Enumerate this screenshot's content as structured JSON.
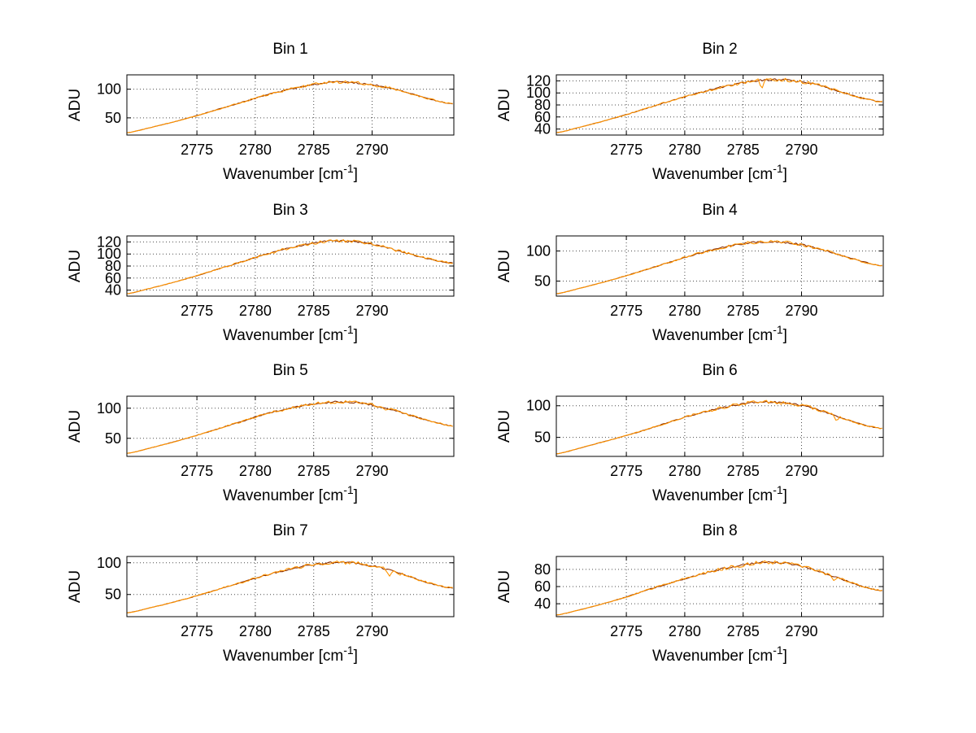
{
  "figure": {
    "background": "#ffffff"
  },
  "axis_labels": {
    "y": "ADU",
    "x_prefix": "Wavenumber [cm",
    "x_sup": "-1",
    "x_suffix": "]"
  },
  "series_style": [
    {
      "name": "trace-secondary",
      "color": "#8b2e00",
      "noise": 0.55,
      "seed": 7,
      "use_spikes": false
    },
    {
      "name": "trace-main",
      "color": "#ff9400",
      "noise": 1.0,
      "seed": 1,
      "use_spikes": true
    }
  ],
  "chart_data": [
    {
      "type": "line",
      "title": "Bin 1",
      "ylabel": "ADU",
      "xlim": [
        2769,
        2797
      ],
      "ylim": [
        20,
        125
      ],
      "xticks": [
        2775,
        2780,
        2785,
        2790
      ],
      "yticks": [
        50,
        100
      ],
      "noise": 2.4,
      "spikes": [],
      "x": [
        2769,
        2771,
        2773,
        2775,
        2777,
        2779,
        2781,
        2783,
        2785,
        2786.5,
        2788,
        2789.5,
        2791,
        2792.5,
        2794,
        2795.5,
        2797
      ],
      "y": [
        24,
        33,
        43,
        54,
        66,
        78,
        90,
        100,
        108,
        112,
        112,
        109,
        104,
        97,
        88,
        80,
        74
      ]
    },
    {
      "type": "line",
      "title": "Bin 2",
      "ylabel": "ADU",
      "xlim": [
        2769,
        2797
      ],
      "ylim": [
        30,
        130
      ],
      "xticks": [
        2775,
        2780,
        2785,
        2790
      ],
      "yticks": [
        40,
        60,
        80,
        100,
        120
      ],
      "noise": 2.6,
      "spikes": [
        {
          "x": 2786.6,
          "dy": -13
        }
      ],
      "x": [
        2769,
        2771,
        2773,
        2775,
        2777,
        2779,
        2781,
        2783,
        2785,
        2786.5,
        2788,
        2789.5,
        2791,
        2792.5,
        2794,
        2795.5,
        2797
      ],
      "y": [
        34,
        43,
        53,
        64,
        76,
        88,
        99,
        109,
        117,
        121,
        122,
        120,
        115,
        107,
        98,
        90,
        85
      ]
    },
    {
      "type": "line",
      "title": "Bin 3",
      "ylabel": "ADU",
      "xlim": [
        2769,
        2797
      ],
      "ylim": [
        30,
        130
      ],
      "xticks": [
        2775,
        2780,
        2785,
        2790
      ],
      "yticks": [
        40,
        60,
        80,
        100,
        120
      ],
      "noise": 2.6,
      "spikes": [],
      "x": [
        2769,
        2771,
        2773,
        2775,
        2777,
        2779,
        2781,
        2783,
        2785,
        2786.5,
        2788,
        2789.5,
        2791,
        2792.5,
        2794,
        2795.5,
        2797
      ],
      "y": [
        34,
        43,
        53,
        64,
        76,
        88,
        100,
        110,
        118,
        122,
        121,
        118,
        112,
        104,
        96,
        89,
        85
      ]
    },
    {
      "type": "line",
      "title": "Bin 4",
      "ylabel": "ADU",
      "xlim": [
        2769,
        2797
      ],
      "ylim": [
        25,
        125
      ],
      "xticks": [
        2775,
        2780,
        2785,
        2790
      ],
      "yticks": [
        50,
        100
      ],
      "noise": 2.4,
      "spikes": [],
      "x": [
        2769,
        2771,
        2773,
        2775,
        2777,
        2779,
        2781,
        2783,
        2785,
        2786.5,
        2788,
        2789.5,
        2791,
        2792.5,
        2794,
        2795.5,
        2797
      ],
      "y": [
        29,
        38,
        48,
        59,
        71,
        83,
        95,
        105,
        112,
        115,
        115,
        112,
        106,
        98,
        89,
        81,
        75
      ]
    },
    {
      "type": "line",
      "title": "Bin 5",
      "ylabel": "ADU",
      "xlim": [
        2769,
        2797
      ],
      "ylim": [
        20,
        120
      ],
      "xticks": [
        2775,
        2780,
        2785,
        2790
      ],
      "yticks": [
        50,
        100
      ],
      "noise": 2.4,
      "spikes": [
        {
          "x": 2791.1,
          "dy": -5
        }
      ],
      "x": [
        2769,
        2771,
        2773,
        2775,
        2777,
        2779,
        2781,
        2783,
        2785,
        2786.5,
        2788,
        2789.5,
        2791,
        2792.5,
        2794,
        2795.5,
        2797
      ],
      "y": [
        25,
        34,
        44,
        55,
        67,
        79,
        91,
        100,
        107,
        110,
        110,
        107,
        101,
        93,
        84,
        76,
        70
      ]
    },
    {
      "type": "line",
      "title": "Bin 6",
      "ylabel": "ADU",
      "xlim": [
        2769,
        2797
      ],
      "ylim": [
        20,
        115
      ],
      "xticks": [
        2775,
        2780,
        2785,
        2790
      ],
      "yticks": [
        50,
        100
      ],
      "noise": 2.4,
      "spikes": [
        {
          "x": 2793.0,
          "dy": -7
        }
      ],
      "x": [
        2769,
        2771,
        2773,
        2775,
        2777,
        2779,
        2781,
        2783,
        2785,
        2786.5,
        2788,
        2789.5,
        2791,
        2792.5,
        2794,
        2795.5,
        2797
      ],
      "y": [
        24,
        33,
        43,
        53,
        64,
        76,
        87,
        96,
        103,
        106,
        105,
        102,
        96,
        87,
        77,
        69,
        64
      ]
    },
    {
      "type": "line",
      "title": "Bin 7",
      "ylabel": "ADU",
      "xlim": [
        2769,
        2797
      ],
      "ylim": [
        15,
        110
      ],
      "xticks": [
        2775,
        2780,
        2785,
        2790
      ],
      "yticks": [
        50,
        100
      ],
      "noise": 2.4,
      "spikes": [
        {
          "x": 2791.5,
          "dy": -9
        },
        {
          "x": 2792.3,
          "dy": -5
        }
      ],
      "x": [
        2769,
        2771,
        2773,
        2775,
        2777,
        2779,
        2781,
        2783,
        2785,
        2786.5,
        2788,
        2789.5,
        2791,
        2792.5,
        2794,
        2795.5,
        2797
      ],
      "y": [
        21,
        29,
        38,
        48,
        59,
        70,
        81,
        90,
        97,
        100,
        100,
        97,
        91,
        83,
        73,
        65,
        60
      ]
    },
    {
      "type": "line",
      "title": "Bin 8",
      "ylabel": "ADU",
      "xlim": [
        2769,
        2797
      ],
      "ylim": [
        25,
        95
      ],
      "xticks": [
        2775,
        2780,
        2785,
        2790
      ],
      "yticks": [
        40,
        60,
        80
      ],
      "noise": 2.0,
      "spikes": [
        {
          "x": 2792.8,
          "dy": -5
        }
      ],
      "x": [
        2769,
        2771,
        2773,
        2775,
        2777,
        2779,
        2781,
        2783,
        2785,
        2786.5,
        2788,
        2789.5,
        2791,
        2792.5,
        2794,
        2795.5,
        2797
      ],
      "y": [
        27,
        33,
        40,
        48,
        57,
        65,
        73,
        80,
        85,
        88,
        88,
        85,
        80,
        73,
        66,
        59,
        55
      ]
    }
  ]
}
